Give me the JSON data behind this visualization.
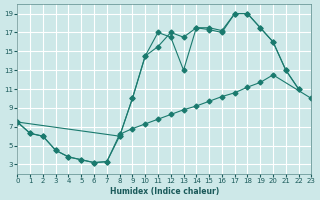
{
  "xlabel": "Humidex (Indice chaleur)",
  "bg_color": "#cde8e8",
  "grid_color": "#ffffff",
  "line_color": "#1a7a6e",
  "xlim": [
    0,
    23
  ],
  "ylim": [
    2,
    20
  ],
  "xticks": [
    0,
    1,
    2,
    3,
    4,
    5,
    6,
    7,
    8,
    9,
    10,
    11,
    12,
    13,
    14,
    15,
    16,
    17,
    18,
    19,
    20,
    21,
    22,
    23
  ],
  "yticks": [
    3,
    5,
    7,
    9,
    11,
    13,
    15,
    17,
    19
  ],
  "line1_x": [
    0,
    1,
    2,
    3,
    4,
    5,
    6,
    7,
    8,
    9,
    10,
    11,
    12,
    13,
    14,
    15,
    16,
    17,
    18,
    19,
    20,
    21,
    22
  ],
  "line1_y": [
    7.5,
    6.3,
    6.0,
    4.5,
    3.8,
    3.5,
    3.2,
    3.3,
    6.0,
    10.0,
    14.5,
    15.5,
    17.0,
    16.5,
    17.5,
    17.3,
    17.0,
    19.0,
    19.0,
    17.5,
    16.0,
    13.0,
    11.0
  ],
  "line2_x": [
    0,
    8,
    9,
    10,
    11,
    12,
    13,
    14,
    15,
    16,
    17,
    18,
    19,
    20,
    21,
    22
  ],
  "line2_y": [
    7.5,
    6.0,
    10.0,
    14.5,
    17.0,
    16.5,
    13.0,
    17.5,
    17.5,
    17.2,
    19.0,
    19.0,
    17.5,
    16.0,
    13.0,
    11.0
  ],
  "line3_x": [
    0,
    1,
    2,
    3,
    4,
    5,
    6,
    7,
    8,
    9,
    10,
    11,
    12,
    13,
    14,
    15,
    16,
    17,
    18,
    19,
    20,
    23
  ],
  "line3_y": [
    7.5,
    6.3,
    6.0,
    4.5,
    3.8,
    3.5,
    3.2,
    3.3,
    6.2,
    6.8,
    7.3,
    7.8,
    8.3,
    8.8,
    9.2,
    9.7,
    10.2,
    10.6,
    11.2,
    11.7,
    12.5,
    10.0
  ]
}
